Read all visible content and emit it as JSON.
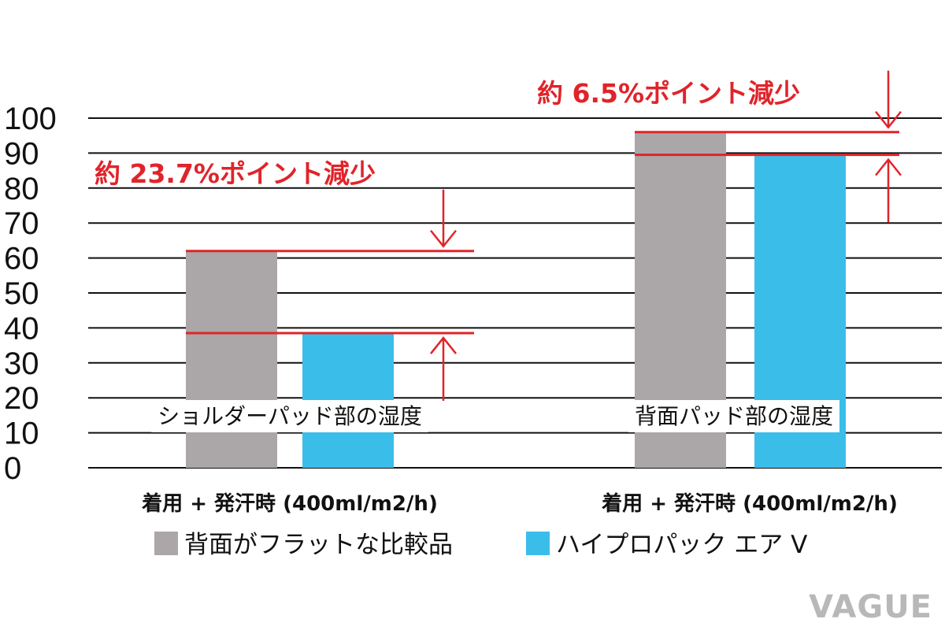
{
  "chart_data": {
    "type": "bar",
    "title": "",
    "xlabel": "",
    "ylabel": "",
    "ylim": [
      0,
      100
    ],
    "yticks": [
      0,
      10,
      20,
      30,
      40,
      50,
      60,
      70,
      80,
      90,
      100
    ],
    "grid": true,
    "categories": [
      "着用 + 発汗時 (400ml/m2/h)",
      "着用 + 発汗時 (400ml/m2/h)"
    ],
    "group_labels": [
      "ショルダーパッド部の湿度",
      "背面パッド部の湿度"
    ],
    "series": [
      {
        "name": "背面がフラットな比較品",
        "color": "#aba7a8",
        "values": [
          62,
          96
        ]
      },
      {
        "name": "ハイプロパック エア V",
        "color": "#3bbdea",
        "values": [
          38.5,
          89.5
        ]
      }
    ],
    "annotations": [
      {
        "text": "約 23.7%ポイント減少",
        "from": 62,
        "to": 38.5
      },
      {
        "text": "約 6.5%ポイント減少",
        "from": 96,
        "to": 89.5
      }
    ],
    "colors": {
      "grid": "#111111",
      "annotation": "#e0242a"
    },
    "legend": "bottom"
  },
  "watermark": "VAGUE"
}
